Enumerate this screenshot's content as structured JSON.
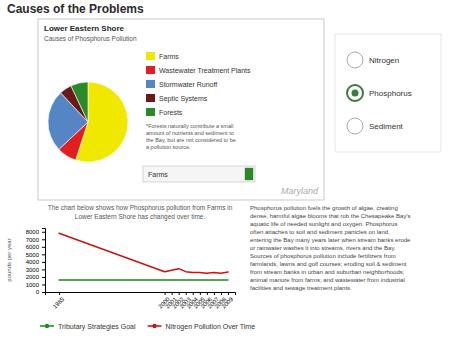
{
  "title": "Causes of the Problems",
  "chart_data": [
    {
      "type": "pie",
      "title": "Lower Eastern Shore",
      "subtitle": "Causes of Phosphorus Pollution",
      "categories": [
        "Farms",
        "Wastewater Treatment Plants",
        "Stormwater Runoff",
        "Septic Systems",
        "Forests"
      ],
      "values": [
        55,
        8,
        25,
        5,
        7
      ],
      "colors": [
        "#f0e800",
        "#e02020",
        "#5585c5",
        "#6b1a1a",
        "#2a8a2a"
      ],
      "legend": "right",
      "annotations": [
        "*Forests naturally contribute a small\namount of nutrients and sediment to\nthe Bay, but are not considered to be\na pollution source.",
        "Farms",
        "Nitrogen",
        "Phosphorus",
        "Sediment",
        "Maryland"
      ]
    },
    {
      "type": "line",
      "title": "The chart below shows how Phosphorus pollution from Farms in",
      "subtitle": "Lower Eastern Shore has changed over time.",
      "x": [
        1985,
        2000,
        2001,
        2002,
        2003,
        2004,
        2005,
        2006,
        2007,
        2008,
        2009
      ],
      "series": [
        {
          "name": "Tributary Strategies Goal",
          "color": "#228822",
          "values": [
            1600,
            1600,
            1600,
            1600,
            1600,
            1600,
            1600,
            1600,
            1600,
            1600,
            1600
          ]
        },
        {
          "name": "Nitrogen Pollution Over Time",
          "color": "#cc1111",
          "values": [
            7800,
            2700,
            2900,
            3100,
            2700,
            2600,
            2600,
            2500,
            2600,
            2500,
            2650
          ]
        }
      ],
      "xlim": [
        1983,
        2010
      ],
      "xticks": [
        1985,
        2000,
        2001,
        2002,
        2003,
        2004,
        2005,
        2006,
        2007,
        2008,
        2009
      ],
      "ylim": [
        0,
        8500
      ],
      "yticks": [
        0,
        1000,
        2000,
        3000,
        4000,
        5000,
        6000,
        7000,
        8000
      ],
      "ylabel": "pounds per year",
      "grid": false,
      "legend": "bottom",
      "annotations": [
        "Phosphorus pollution fuels the growth of algae, creating\ndense, harmful algae blooms that rob the Chesapeake Bay's\naquatic life of needed sunlight and oxygen. Phosphorus\noften attaches to soil and sediment particles on land,\nentering the Bay many years later when stream banks erode\nor rainwater washes it into streams, rivers and the Bay.\nSources of phosphorus pollution include fertilizers from\nfarmlands, lawns and golf courses; eroding soil & sediment\nfrom stream banks in urban and suburban neighborhoods;\nanimal manure from farms; and wastewater from industrial\nfacilities and sewage treatment plants."
      ]
    }
  ]
}
